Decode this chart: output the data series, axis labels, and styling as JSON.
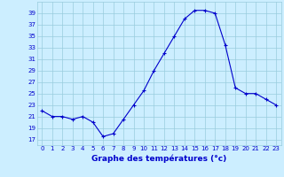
{
  "hours": [
    0,
    1,
    2,
    3,
    4,
    5,
    6,
    7,
    8,
    9,
    10,
    11,
    12,
    13,
    14,
    15,
    16,
    17,
    18,
    19,
    20,
    21,
    22,
    23
  ],
  "temps": [
    22,
    21,
    21,
    20.5,
    21,
    20,
    17.5,
    18,
    20.5,
    23,
    25.5,
    29,
    32,
    35,
    38,
    39.5,
    39.5,
    39,
    33.5,
    26,
    25,
    25,
    24,
    23
  ],
  "line_color": "#0000cc",
  "marker": "+",
  "marker_color": "#0000cc",
  "bg_color": "#cceeff",
  "grid_color": "#99ccdd",
  "xlabel": "Graphe des températures (°c)",
  "xlabel_color": "#0000cc",
  "tick_color": "#0000cc",
  "ylim": [
    16,
    41
  ],
  "yticks": [
    17,
    19,
    21,
    23,
    25,
    27,
    29,
    31,
    33,
    35,
    37,
    39
  ],
  "xlim": [
    -0.5,
    23.5
  ],
  "xticks": [
    0,
    1,
    2,
    3,
    4,
    5,
    6,
    7,
    8,
    9,
    10,
    11,
    12,
    13,
    14,
    15,
    16,
    17,
    18,
    19,
    20,
    21,
    22,
    23
  ],
  "tick_fontsize": 5.0,
  "xlabel_fontsize": 6.5
}
